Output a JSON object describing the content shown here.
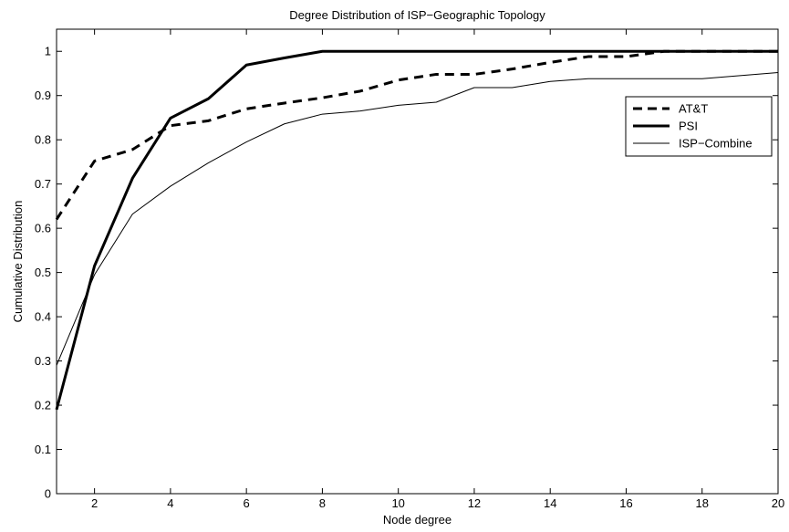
{
  "chart_data": {
    "type": "line",
    "title": "Degree Distribution of ISP−Geographic Topology",
    "xlabel": "Node degree",
    "ylabel": "Cumulative Distribution",
    "xlim": [
      1,
      20
    ],
    "ylim": [
      0,
      1.05
    ],
    "grid": false,
    "legend_position": "top-right",
    "xticks": [
      2,
      4,
      6,
      8,
      10,
      12,
      14,
      16,
      18,
      20
    ],
    "xtick_labels": [
      "2",
      "4",
      "6",
      "8",
      "10",
      "12",
      "14",
      "16",
      "18",
      "20"
    ],
    "yticks": [
      0,
      0.1,
      0.2,
      0.3,
      0.4,
      0.5,
      0.6,
      0.7,
      0.8,
      0.9,
      1
    ],
    "ytick_labels": [
      "0",
      "0.1",
      "0.2",
      "0.3",
      "0.4",
      "0.5",
      "0.6",
      "0.7",
      "0.8",
      "0.9",
      "1"
    ],
    "x": [
      1,
      2,
      3,
      4,
      5,
      6,
      7,
      8,
      9,
      10,
      11,
      12,
      13,
      14,
      15,
      16,
      17,
      18,
      19,
      20
    ],
    "series": [
      {
        "name": "AT&T",
        "style": "dashed-thick",
        "color": "#000000",
        "values": [
          0.62,
          0.752,
          0.778,
          0.832,
          0.843,
          0.87,
          0.883,
          0.895,
          0.91,
          0.935,
          0.948,
          0.948,
          0.96,
          0.975,
          0.988,
          0.988,
          1.0,
          1.0,
          1.0,
          1.0
        ]
      },
      {
        "name": "PSI",
        "style": "solid-thick",
        "color": "#000000",
        "values": [
          0.19,
          0.515,
          0.713,
          0.849,
          0.893,
          0.969,
          0.985,
          1.0,
          1.0,
          1.0,
          1.0,
          1.0,
          1.0,
          1.0,
          1.0,
          1.0,
          1.0,
          1.0,
          1.0,
          1.0
        ]
      },
      {
        "name": "ISP−Combine",
        "style": "solid-thin",
        "color": "#000000",
        "values": [
          0.29,
          0.495,
          0.632,
          0.695,
          0.748,
          0.795,
          0.836,
          0.858,
          0.865,
          0.878,
          0.885,
          0.918,
          0.918,
          0.932,
          0.938,
          0.938,
          0.938,
          0.938,
          0.945,
          0.952
        ]
      }
    ]
  }
}
